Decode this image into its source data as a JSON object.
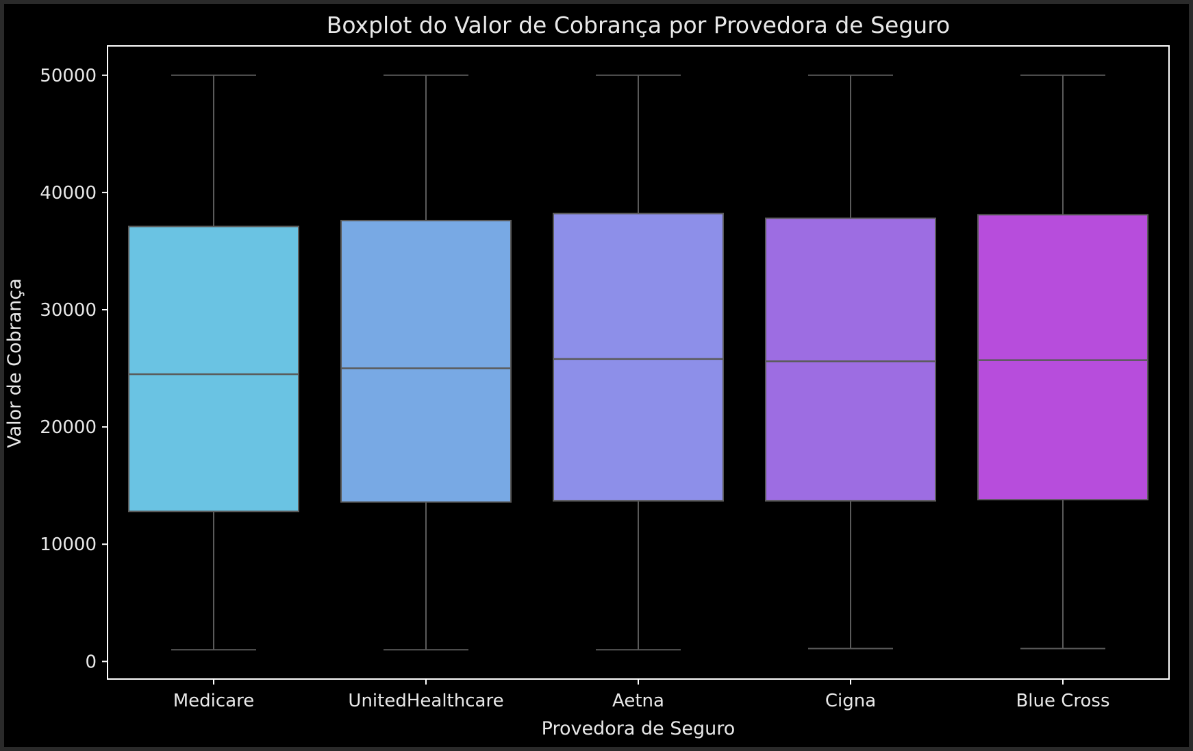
{
  "chart_data": {
    "type": "box",
    "title": "Boxplot do Valor de Cobrança por Provedora de Seguro",
    "xlabel": "Provedora de Seguro",
    "ylabel": "Valor de Cobrança",
    "ylim": [
      -1500,
      52500
    ],
    "yticks": [
      0,
      10000,
      20000,
      30000,
      40000,
      50000
    ],
    "grid": false,
    "legend": "none",
    "background": "#000000",
    "axis_color": "#ffffff",
    "box_edge_color": "#5a5a5a",
    "series": [
      {
        "category": "Medicare",
        "color": "#6ac3e3",
        "min": 1000,
        "q1": 12800,
        "median": 24500,
        "q3": 37100,
        "max": 50000
      },
      {
        "category": "UnitedHealthcare",
        "color": "#78a9e4",
        "min": 1000,
        "q1": 13600,
        "median": 25000,
        "q3": 37600,
        "max": 50000
      },
      {
        "category": "Aetna",
        "color": "#8d8fe9",
        "min": 1000,
        "q1": 13700,
        "median": 25800,
        "q3": 38200,
        "max": 50000
      },
      {
        "category": "Cigna",
        "color": "#9d6de2",
        "min": 1100,
        "q1": 13700,
        "median": 25600,
        "q3": 37800,
        "max": 50000
      },
      {
        "category": "Blue Cross",
        "color": "#b74ddc",
        "min": 1100,
        "q1": 13800,
        "median": 25700,
        "q3": 38100,
        "max": 50000
      }
    ]
  }
}
